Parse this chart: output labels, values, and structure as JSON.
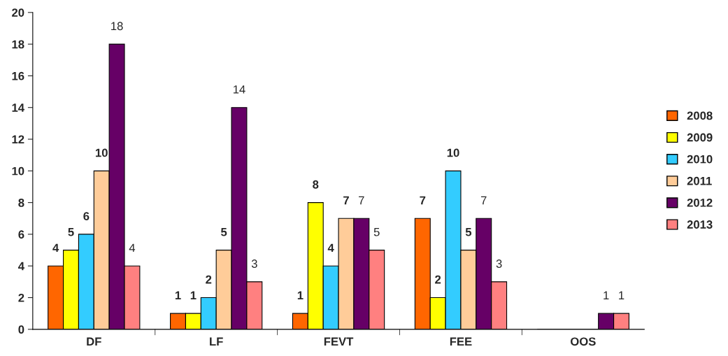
{
  "chart_data": {
    "type": "bar",
    "categories": [
      "DF",
      "LF",
      "FEVT",
      "FEE",
      "OOS"
    ],
    "series": [
      {
        "name": "2008",
        "color": "#ff6600",
        "values": [
          4,
          1,
          1,
          7,
          0
        ],
        "value_labels": [
          "4",
          "1",
          "1",
          "7",
          null
        ]
      },
      {
        "name": "2009",
        "color": "#ffff00",
        "values": [
          5,
          1,
          8,
          2,
          0
        ],
        "value_labels": [
          "5",
          "1",
          "8",
          "2",
          null
        ]
      },
      {
        "name": "2010",
        "color": "#33ccff",
        "values": [
          6,
          2,
          4,
          10,
          0
        ],
        "value_labels": [
          "6",
          "2",
          "4",
          "10",
          null
        ]
      },
      {
        "name": "2011",
        "color": "#ffcc99",
        "values": [
          10,
          5,
          7,
          5,
          0
        ],
        "value_labels": [
          "10",
          "5",
          "7",
          "5",
          null
        ]
      },
      {
        "name": "2012",
        "color": "#660066",
        "values": [
          18,
          14,
          7,
          7,
          1
        ],
        "value_labels": [
          "18",
          "14",
          "7",
          "7",
          "1"
        ]
      },
      {
        "name": "2013",
        "color": "#ff8080",
        "values": [
          4,
          3,
          5,
          3,
          1
        ],
        "value_labels": [
          "4",
          "3",
          "5",
          "3",
          "1"
        ]
      }
    ],
    "ylim": [
      0,
      20
    ],
    "yticks": [
      0,
      2,
      4,
      6,
      8,
      10,
      12,
      14,
      16,
      18,
      20
    ],
    "grid": false,
    "legend": "right"
  }
}
